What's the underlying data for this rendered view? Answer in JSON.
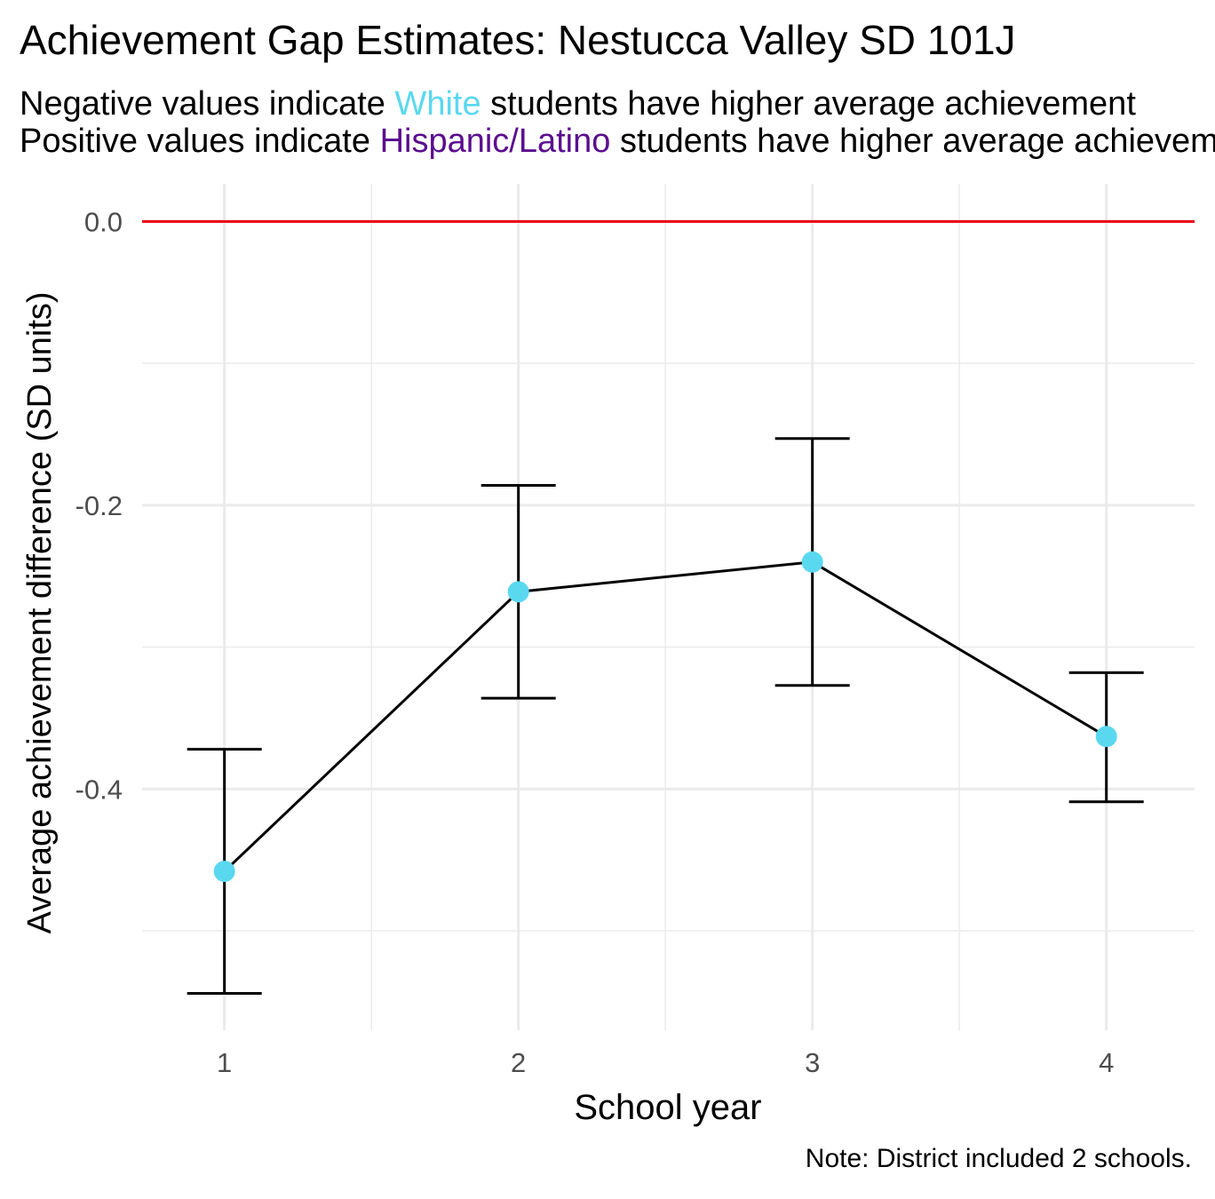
{
  "title": "Achievement Gap Estimates: Nestucca Valley SD 101J",
  "subtitle": {
    "line1_prefix": "Negative values indicate ",
    "line1_group": "White",
    "line1_suffix": " students have higher average achievement",
    "line2_prefix": "Positive values indicate ",
    "line2_group": "Hispanic/Latino",
    "line2_suffix": " students have higher average achievement"
  },
  "caption": "Note: District included 2 schools.",
  "colors": {
    "white_group": "#5ad8f0",
    "hispanic_group": "#5b0d8f",
    "reference_line": "#e8000b",
    "point": "#5ad8f0",
    "line": "#000000",
    "grid": "#ebebeb"
  },
  "chart_data": {
    "type": "line",
    "xlabel": "School year",
    "ylabel": "Average achievement difference (SD units)",
    "x": [
      1,
      2,
      3,
      4
    ],
    "x_tick_labels": [
      "1",
      "2",
      "3",
      "4"
    ],
    "xlim": [
      0.72,
      4.3
    ],
    "ylim": [
      -0.57,
      0.0265
    ],
    "y_ticks": [
      0.0,
      -0.2,
      -0.4
    ],
    "y_tick_labels": [
      "0.0",
      "-0.2",
      "-0.4"
    ],
    "reference_line": 0.0,
    "grid": true,
    "series": [
      {
        "values": [
          -0.458,
          -0.261,
          -0.24,
          -0.363
        ],
        "lower": [
          -0.544,
          -0.336,
          -0.327,
          -0.409
        ],
        "upper": [
          -0.372,
          -0.186,
          -0.153,
          -0.318
        ]
      }
    ]
  }
}
